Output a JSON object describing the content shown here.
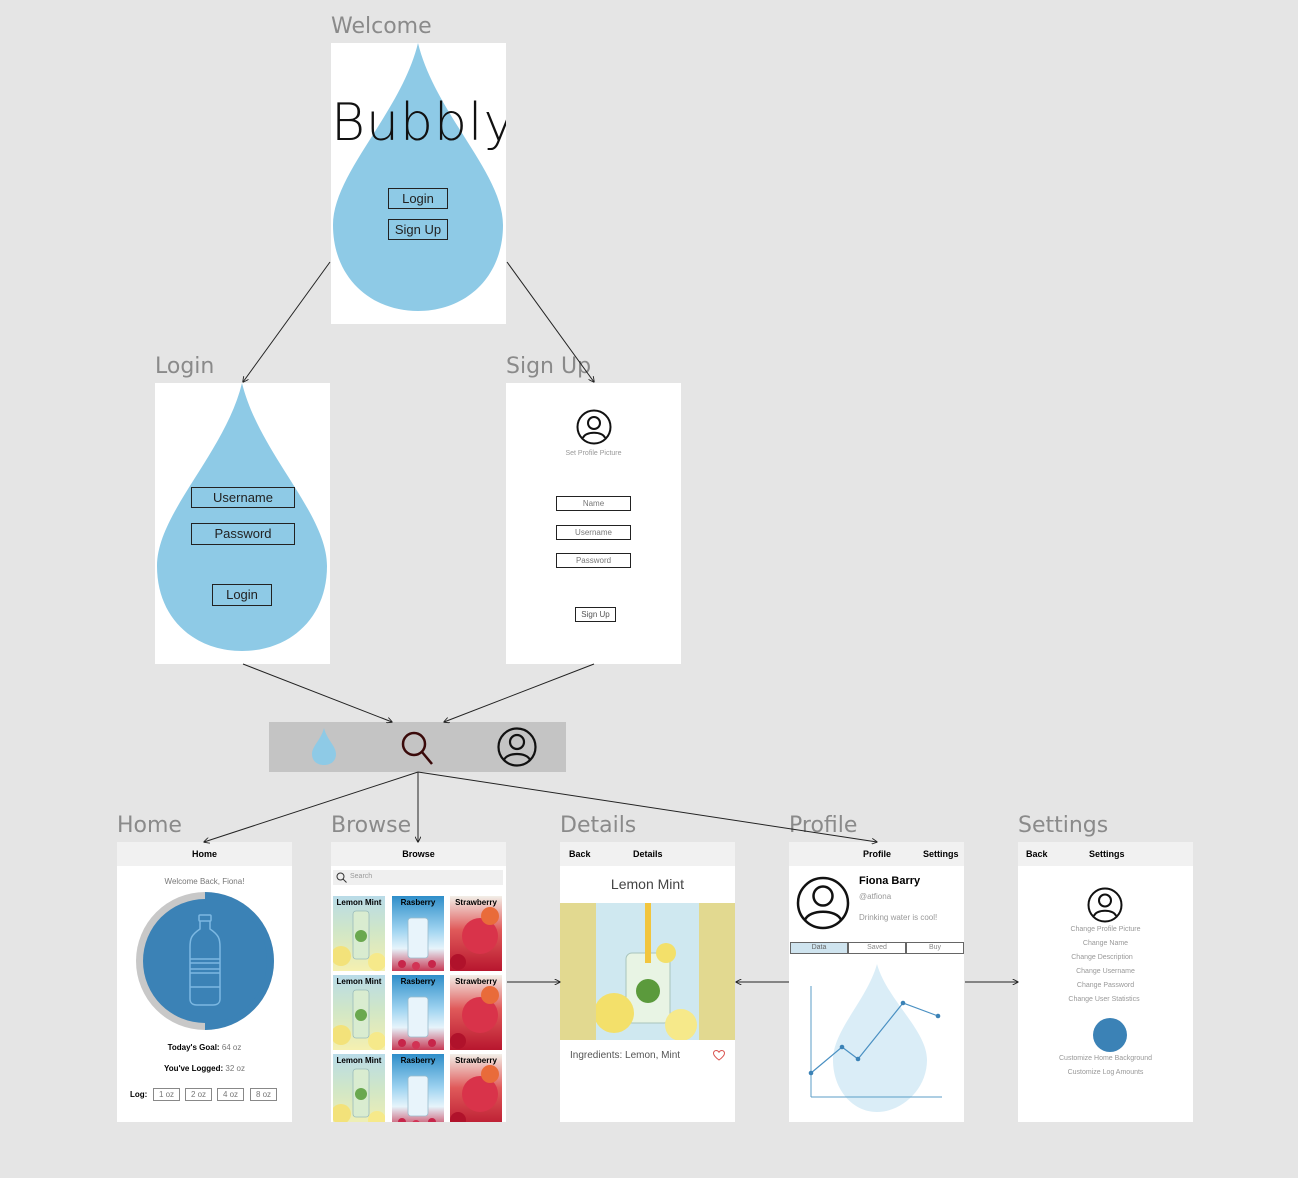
{
  "frames": {
    "welcome": {
      "title": "Welcome",
      "brand": "Bubbly",
      "login_label": "Login",
      "signup_label": "Sign Up"
    },
    "login": {
      "title": "Login",
      "username_label": "Username",
      "password_label": "Password",
      "login_label": "Login"
    },
    "signup": {
      "title": "Sign Up",
      "set_picture_label": "Set Profile Picture",
      "name_label": "Name",
      "username_label": "Username",
      "password_label": "Password",
      "signup_label": "Sign Up"
    },
    "home": {
      "title": "Home",
      "header": "Home",
      "welcome_text": "Welcome Back, Fiona!",
      "goal_label": "Today's Goal:",
      "goal_value": "64 oz",
      "logged_label": "You've Logged:",
      "logged_value": "32 oz",
      "progress_fraction": 0.5,
      "log_label": "Log:",
      "log_options": [
        "1 oz",
        "2 oz",
        "4 oz",
        "8 oz"
      ]
    },
    "browse": {
      "title": "Browse",
      "header": "Browse",
      "search_placeholder": "Search",
      "tiles": [
        "Lemon Mint",
        "Rasberry",
        "Strawberry",
        "Lemon Mint",
        "Rasberry",
        "Strawberry",
        "Lemon Mint",
        "Rasberry",
        "Strawberry"
      ]
    },
    "details": {
      "title": "Details",
      "back_label": "Back",
      "header": "Details",
      "drink_name": "Lemon Mint",
      "ingredients": "Ingredients: Lemon, Mint"
    },
    "profile": {
      "title": "Profile",
      "header": "Profile",
      "settings_label": "Settings",
      "name": "Fiona Barry",
      "handle": "@atfiona",
      "bio": "Drinking water is cool!",
      "tabs": [
        "Data",
        "Saved",
        "Buy"
      ]
    },
    "settings": {
      "title": "Settings",
      "back_label": "Back",
      "header": "Settings",
      "options": [
        "Change Profile Picture",
        "Change Name",
        "Change Description",
        "Change Username",
        "Change Password",
        "Change User Statistics"
      ],
      "bottom_options": [
        "Customize Home Background",
        "Customize Log Amounts"
      ]
    }
  },
  "navbar": {
    "icons": [
      "drop-icon",
      "search-icon",
      "profile-icon"
    ]
  },
  "colors": {
    "canvas": "#e5e5e5",
    "drop": "#8ecae6",
    "home_circle": "#3b82b6",
    "navbar": "#c4c4c4",
    "tab_active": "#cfe4ef"
  }
}
